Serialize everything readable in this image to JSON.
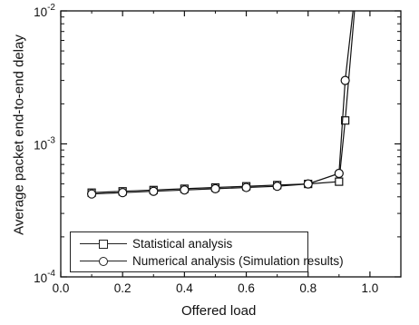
{
  "chart_data": {
    "type": "line",
    "title": "",
    "xlabel": "Offered load",
    "ylabel": "Average packet end-to-end delay",
    "xlim": [
      0.0,
      1.1
    ],
    "ylim": [
      0.0001,
      0.01
    ],
    "yscale": "log",
    "x_ticks": [
      {
        "value": 0.0,
        "label": "0.0"
      },
      {
        "value": 0.2,
        "label": "0.2"
      },
      {
        "value": 0.4,
        "label": "0.4"
      },
      {
        "value": 0.6,
        "label": "0.6"
      },
      {
        "value": 0.8,
        "label": "0.8"
      },
      {
        "value": 1.0,
        "label": "1.0"
      }
    ],
    "y_ticks": [
      {
        "value": 0.0001,
        "base": "10",
        "exp": "-4"
      },
      {
        "value": 0.001,
        "base": "10",
        "exp": "-3"
      },
      {
        "value": 0.01,
        "base": "10",
        "exp": "-2"
      }
    ],
    "grid": false,
    "legend_position": "bottom-left",
    "series": [
      {
        "name": "Statistical analysis",
        "marker": "square",
        "x": [
          0.1,
          0.2,
          0.3,
          0.4,
          0.5,
          0.6,
          0.7,
          0.8,
          0.9,
          0.92,
          0.95
        ],
        "y": [
          0.00043,
          0.00044,
          0.00045,
          0.00046,
          0.00047,
          0.00048,
          0.00049,
          0.0005,
          0.00052,
          0.0015,
          0.01
        ],
        "marker_points": 10
      },
      {
        "name": "Numerical analysis (Simulation results)",
        "marker": "circle",
        "x": [
          0.1,
          0.2,
          0.3,
          0.4,
          0.5,
          0.6,
          0.7,
          0.8,
          0.9,
          0.92,
          0.945
        ],
        "y": [
          0.00042,
          0.00043,
          0.00044,
          0.00045,
          0.00046,
          0.00047,
          0.00048,
          0.0005,
          0.0006,
          0.003,
          0.01
        ],
        "marker_points": 10
      }
    ]
  }
}
